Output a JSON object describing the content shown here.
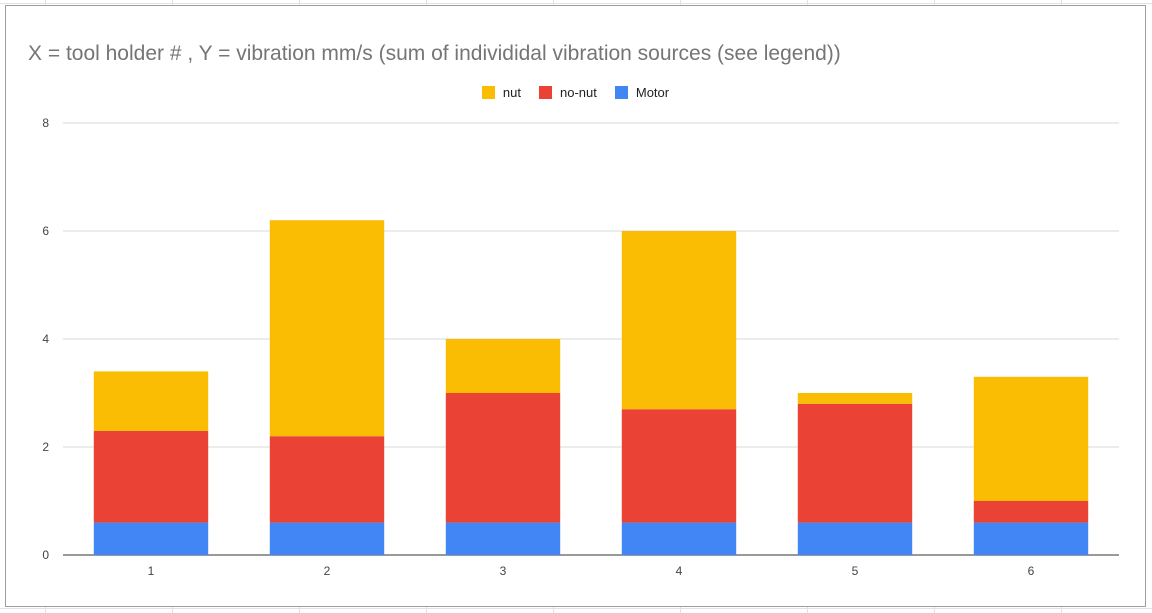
{
  "chart_data": {
    "type": "bar",
    "stacked": true,
    "title": "X = tool holder # , Y = vibration mm/s (sum of individidal vibration sources (see legend))",
    "xlabel": "",
    "ylabel": "",
    "categories": [
      "1",
      "2",
      "3",
      "4",
      "5",
      "6"
    ],
    "ylim": [
      0,
      8
    ],
    "yticks": [
      "0",
      "2",
      "4",
      "6",
      "8"
    ],
    "grid": true,
    "legend_position": "top",
    "legend": [
      "nut",
      "no-nut",
      "Motor"
    ],
    "series": [
      {
        "name": "Motor",
        "color": "#4285f4",
        "values": [
          0.6,
          0.6,
          0.6,
          0.6,
          0.6,
          0.6
        ]
      },
      {
        "name": "no-nut",
        "color": "#ea4335",
        "values": [
          1.7,
          1.6,
          2.4,
          2.1,
          2.2,
          0.4
        ]
      },
      {
        "name": "nut",
        "color": "#fbbc04",
        "values": [
          1.1,
          4.0,
          1.0,
          3.3,
          0.2,
          2.3
        ]
      }
    ]
  }
}
